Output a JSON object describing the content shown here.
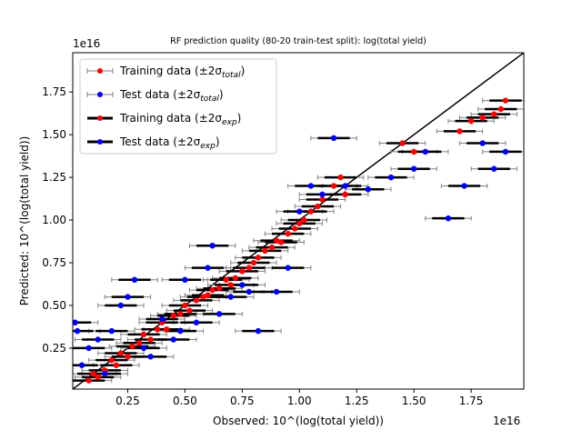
{
  "chart_data": {
    "type": "scatter",
    "title": "RF prediction quality (80-20 train-test split): log(total yield)",
    "xlabel": "Observed: 10^(log(total yield))",
    "ylabel": "Predicted: 10^(log(total yield))",
    "x_offset_label": "1e16",
    "y_offset_label": "1e16",
    "xlim": [
      0.01,
      1.98
    ],
    "ylim": [
      0.01,
      1.98
    ],
    "x_ticks": [
      0.25,
      0.5,
      0.75,
      1.0,
      1.25,
      1.5,
      1.75
    ],
    "x_tick_labels": [
      "0.25",
      "0.50",
      "0.75",
      "1.00",
      "1.25",
      "1.50",
      "1.75"
    ],
    "y_ticks": [
      0.25,
      0.5,
      0.75,
      1.0,
      1.25,
      1.5,
      1.75
    ],
    "y_tick_labels": [
      "0.25",
      "0.50",
      "0.75",
      "1.00",
      "1.25",
      "1.50",
      "1.75"
    ],
    "identity_line": {
      "from": [
        0.01,
        0.01
      ],
      "to": [
        1.98,
        1.98
      ],
      "color": "#000000"
    },
    "legend": {
      "position": "upper-left",
      "entries": [
        {
          "label": "Training data (±2σ",
          "sub": "total",
          "suffix": ")",
          "marker_color": "#ff0000",
          "bar_color": "#808080",
          "bar_style": "thin"
        },
        {
          "label": "Test data (±2σ",
          "sub": "total",
          "suffix": ")",
          "marker_color": "#0000ff",
          "bar_color": "#808080",
          "bar_style": "thin"
        },
        {
          "label": "Training data (±2σ",
          "sub": "exp",
          "suffix": ")",
          "marker_color": "#ff0000",
          "bar_color": "#000000",
          "bar_style": "thick"
        },
        {
          "label": "Test data (±2σ",
          "sub": "exp",
          "suffix": ")",
          "marker_color": "#0000ff",
          "bar_color": "#000000",
          "bar_style": "thick"
        }
      ]
    },
    "series": [
      {
        "name": "Training data",
        "color": "#ff0000",
        "x_err_total": 0.1,
        "x_err_exp": 0.07,
        "points": [
          [
            0.08,
            0.06
          ],
          [
            0.1,
            0.1
          ],
          [
            0.12,
            0.08
          ],
          [
            0.15,
            0.12
          ],
          [
            0.18,
            0.18
          ],
          [
            0.2,
            0.15
          ],
          [
            0.22,
            0.22
          ],
          [
            0.25,
            0.2
          ],
          [
            0.27,
            0.26
          ],
          [
            0.3,
            0.28
          ],
          [
            0.32,
            0.33
          ],
          [
            0.35,
            0.3
          ],
          [
            0.38,
            0.36
          ],
          [
            0.4,
            0.4
          ],
          [
            0.42,
            0.36
          ],
          [
            0.45,
            0.44
          ],
          [
            0.48,
            0.45
          ],
          [
            0.5,
            0.5
          ],
          [
            0.52,
            0.47
          ],
          [
            0.55,
            0.53
          ],
          [
            0.58,
            0.55
          ],
          [
            0.6,
            0.56
          ],
          [
            0.62,
            0.59
          ],
          [
            0.65,
            0.6
          ],
          [
            0.68,
            0.65
          ],
          [
            0.7,
            0.62
          ],
          [
            0.72,
            0.66
          ],
          [
            0.75,
            0.7
          ],
          [
            0.78,
            0.72
          ],
          [
            0.8,
            0.75
          ],
          [
            0.82,
            0.78
          ],
          [
            0.85,
            0.82
          ],
          [
            0.88,
            0.84
          ],
          [
            0.9,
            0.88
          ],
          [
            0.92,
            0.87
          ],
          [
            0.95,
            0.92
          ],
          [
            0.98,
            0.95
          ],
          [
            1.0,
            0.98
          ],
          [
            1.02,
            1.0
          ],
          [
            1.05,
            1.05
          ],
          [
            1.08,
            1.08
          ],
          [
            1.1,
            1.12
          ],
          [
            1.15,
            1.2
          ],
          [
            1.18,
            1.25
          ],
          [
            1.2,
            1.15
          ],
          [
            1.45,
            1.45
          ],
          [
            1.5,
            1.4
          ],
          [
            1.7,
            1.52
          ],
          [
            1.75,
            1.58
          ],
          [
            1.8,
            1.6
          ],
          [
            1.85,
            1.62
          ],
          [
            1.88,
            1.65
          ],
          [
            1.9,
            1.7
          ]
        ]
      },
      {
        "name": "Test data",
        "color": "#0000ff",
        "x_err_total": 0.1,
        "x_err_exp": 0.07,
        "points": [
          [
            0.02,
            0.4
          ],
          [
            0.03,
            0.35
          ],
          [
            0.05,
            0.15
          ],
          [
            0.08,
            0.25
          ],
          [
            0.12,
            0.3
          ],
          [
            0.15,
            0.1
          ],
          [
            0.18,
            0.35
          ],
          [
            0.22,
            0.5
          ],
          [
            0.25,
            0.55
          ],
          [
            0.28,
            0.65
          ],
          [
            0.32,
            0.25
          ],
          [
            0.35,
            0.2
          ],
          [
            0.4,
            0.42
          ],
          [
            0.45,
            0.3
          ],
          [
            0.48,
            0.35
          ],
          [
            0.5,
            0.65
          ],
          [
            0.55,
            0.4
          ],
          [
            0.6,
            0.72
          ],
          [
            0.62,
            0.85
          ],
          [
            0.65,
            0.45
          ],
          [
            0.7,
            0.55
          ],
          [
            0.75,
            0.62
          ],
          [
            0.78,
            0.58
          ],
          [
            0.82,
            0.35
          ],
          [
            0.9,
            0.58
          ],
          [
            0.95,
            0.72
          ],
          [
            1.0,
            1.05
          ],
          [
            1.05,
            1.2
          ],
          [
            1.1,
            1.15
          ],
          [
            1.15,
            1.48
          ],
          [
            1.2,
            1.2
          ],
          [
            1.3,
            1.18
          ],
          [
            1.4,
            1.25
          ],
          [
            1.5,
            1.3
          ],
          [
            1.55,
            1.4
          ],
          [
            1.65,
            1.01
          ],
          [
            1.72,
            1.2
          ],
          [
            1.8,
            1.45
          ],
          [
            1.85,
            1.3
          ],
          [
            1.9,
            1.4
          ]
        ]
      }
    ]
  }
}
